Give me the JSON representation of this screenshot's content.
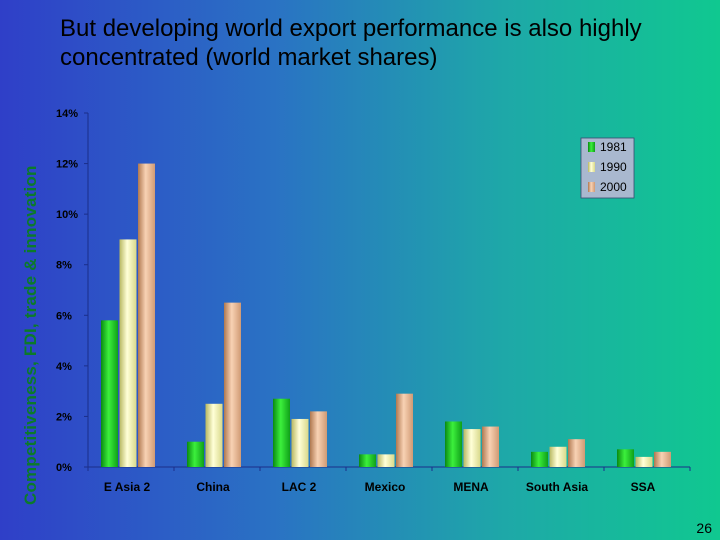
{
  "slide": {
    "side_label": "Competitiveness, FDI, trade & innovation",
    "title": "But developing world export performance is also highly concentrated (world market shares)",
    "page_number": "26"
  },
  "chart_data": {
    "type": "bar",
    "title": "",
    "xlabel": "",
    "ylabel": "",
    "ylim": [
      0,
      14
    ],
    "yticks": [
      "0%",
      "2%",
      "4%",
      "6%",
      "8%",
      "10%",
      "12%",
      "14%"
    ],
    "categories": [
      "E Asia 2",
      "China",
      "LAC 2",
      "Mexico",
      "MENA",
      "South Asia",
      "SSA"
    ],
    "series": [
      {
        "name": "1981",
        "color": "#22cc22",
        "values": [
          5.8,
          1.0,
          2.7,
          0.5,
          1.8,
          0.6,
          0.7
        ]
      },
      {
        "name": "1990",
        "color": "#f2f2a0",
        "values": [
          9.0,
          2.5,
          1.9,
          0.5,
          1.5,
          0.8,
          0.4
        ]
      },
      {
        "name": "2000",
        "color": "#e6b08a",
        "values": [
          12.0,
          6.5,
          2.2,
          2.9,
          1.6,
          1.1,
          0.6
        ]
      }
    ],
    "legend": "top-right",
    "grid": false
  }
}
